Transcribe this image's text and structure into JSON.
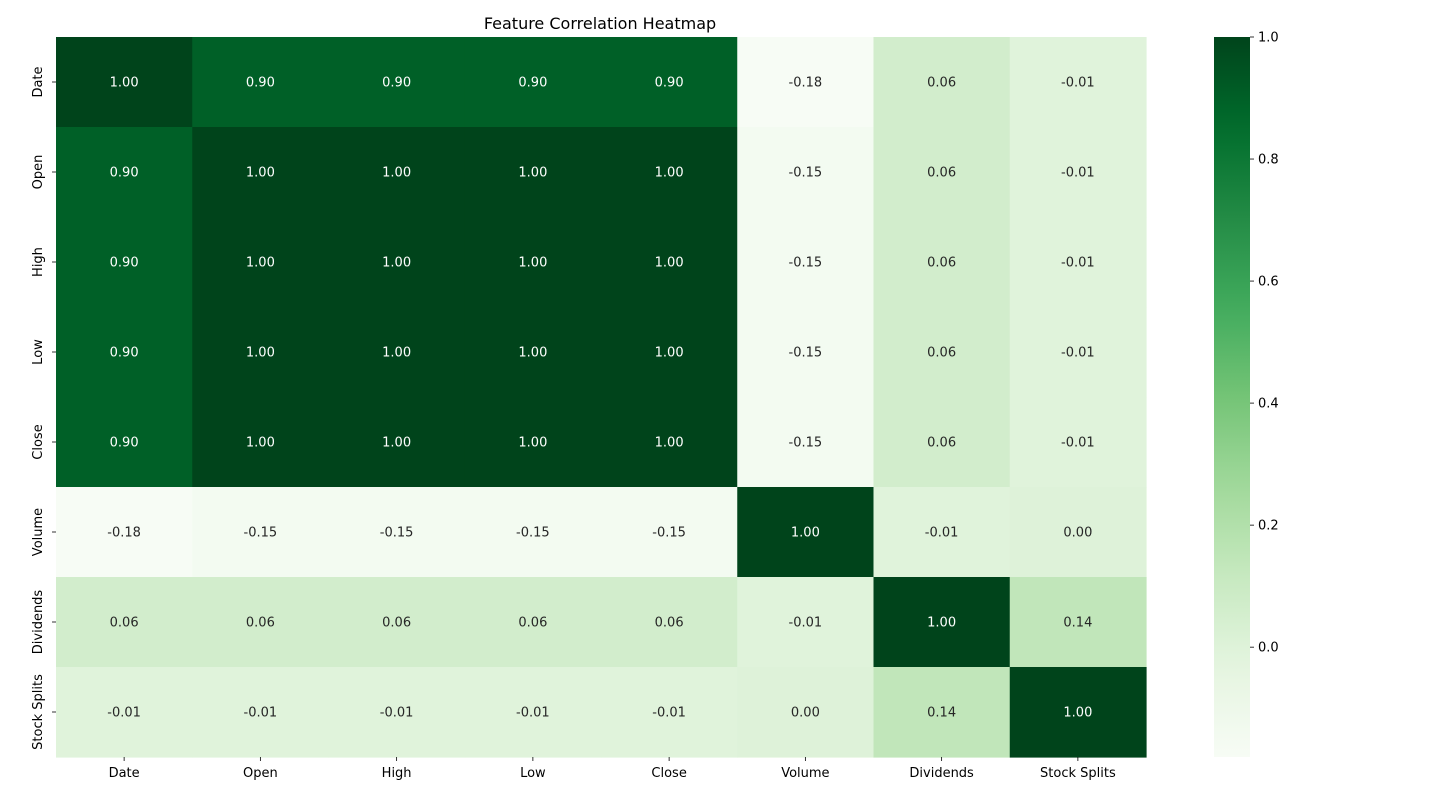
{
  "chart_data": {
    "type": "heatmap",
    "title": "Feature Correlation Heatmap",
    "xlabel": "",
    "ylabel": "",
    "x_categories": [
      "Date",
      "Open",
      "High",
      "Low",
      "Close",
      "Volume",
      "Dividends",
      "Stock Splits"
    ],
    "y_categories": [
      "Date",
      "Open",
      "High",
      "Low",
      "Close",
      "Volume",
      "Dividends",
      "Stock Splits"
    ],
    "values": [
      [
        1.0,
        0.9,
        0.9,
        0.9,
        0.9,
        -0.18,
        0.06,
        -0.01
      ],
      [
        0.9,
        1.0,
        1.0,
        1.0,
        1.0,
        -0.15,
        0.06,
        -0.01
      ],
      [
        0.9,
        1.0,
        1.0,
        1.0,
        1.0,
        -0.15,
        0.06,
        -0.01
      ],
      [
        0.9,
        1.0,
        1.0,
        1.0,
        1.0,
        -0.15,
        0.06,
        -0.01
      ],
      [
        0.9,
        1.0,
        1.0,
        1.0,
        1.0,
        -0.15,
        0.06,
        -0.01
      ],
      [
        -0.18,
        -0.15,
        -0.15,
        -0.15,
        -0.15,
        1.0,
        -0.01,
        0.0
      ],
      [
        0.06,
        0.06,
        0.06,
        0.06,
        0.06,
        -0.01,
        1.0,
        0.14
      ],
      [
        -0.01,
        -0.01,
        -0.01,
        -0.01,
        -0.01,
        0.0,
        0.14,
        1.0
      ]
    ],
    "annotation_format": "2 decimals",
    "colormap": "Greens",
    "color_range": [
      -0.18,
      1.0
    ],
    "colorbar": {
      "position": "right",
      "ticks": [
        0.0,
        0.2,
        0.4,
        0.6,
        0.8,
        1.0
      ],
      "tick_labels": [
        "0.0",
        "0.2",
        "0.4",
        "0.6",
        "0.8",
        "1.0"
      ]
    },
    "grid": false,
    "legend": "none"
  }
}
